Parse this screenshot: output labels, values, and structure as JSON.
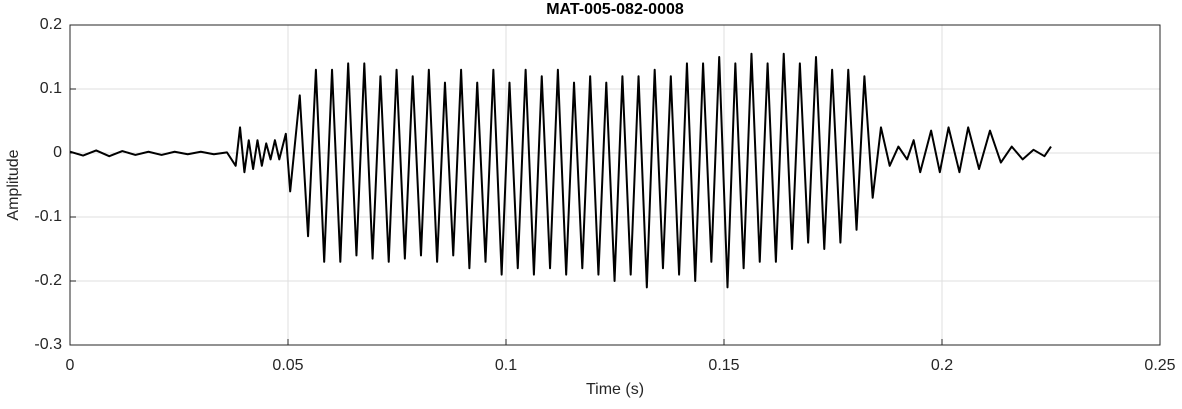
{
  "chart_data": {
    "type": "line",
    "title": "MAT-005-082-0008",
    "x_label": "Time (s)",
    "y_label": "Amplitude",
    "color": "#000000",
    "grid": true,
    "xlim": [
      0,
      0.25
    ],
    "xticks": [
      0,
      0.05,
      0.1,
      0.15,
      0.2,
      0.25
    ],
    "ylim": [
      -0.3,
      0.2
    ],
    "yticks": [
      -0.3,
      -0.2,
      -0.1,
      0,
      0.1,
      0.2
    ],
    "x": [
      0,
      0.003,
      0.006,
      0.009,
      0.012,
      0.015,
      0.018,
      0.021,
      0.024,
      0.027,
      0.03,
      0.033,
      0.036,
      0.038,
      0.039,
      0.04,
      0.041,
      0.042,
      0.043,
      0.044,
      0.045,
      0.046,
      0.047,
      0.048,
      0.0495,
      0.0505,
      0.0527,
      0.0546,
      0.0564,
      0.0583,
      0.0601,
      0.062,
      0.0638,
      0.0657,
      0.0675,
      0.0694,
      0.0712,
      0.0731,
      0.0749,
      0.0768,
      0.0786,
      0.0805,
      0.0823,
      0.0842,
      0.086,
      0.0879,
      0.0897,
      0.0916,
      0.0934,
      0.0953,
      0.0971,
      0.099,
      0.1008,
      0.1027,
      0.1045,
      0.1064,
      0.1082,
      0.1101,
      0.1119,
      0.1138,
      0.1156,
      0.1175,
      0.1193,
      0.1212,
      0.123,
      0.1249,
      0.1267,
      0.1286,
      0.1304,
      0.1323,
      0.1341,
      0.136,
      0.1378,
      0.1397,
      0.1415,
      0.1434,
      0.1452,
      0.1471,
      0.1489,
      0.1508,
      0.1526,
      0.1545,
      0.1563,
      0.1582,
      0.16,
      0.1619,
      0.1637,
      0.1656,
      0.1674,
      0.1693,
      0.1711,
      0.173,
      0.1748,
      0.1767,
      0.1785,
      0.1804,
      0.1822,
      0.1841,
      0.186,
      0.188,
      0.19,
      0.192,
      0.1935,
      0.195,
      0.1975,
      0.1995,
      0.2015,
      0.204,
      0.206,
      0.2085,
      0.211,
      0.2135,
      0.216,
      0.2185,
      0.221,
      0.2235,
      0.225
    ],
    "values": [
      0.002,
      -0.004,
      0.004,
      -0.005,
      0.003,
      -0.003,
      0.002,
      -0.003,
      0.002,
      -0.002,
      0.002,
      -0.002,
      0.001,
      -0.02,
      0.04,
      -0.03,
      0.02,
      -0.025,
      0.02,
      -0.02,
      0.015,
      -0.01,
      0.02,
      -0.01,
      0.03,
      -0.06,
      0.09,
      -0.13,
      0.13,
      -0.17,
      0.13,
      -0.17,
      0.14,
      -0.16,
      0.14,
      -0.165,
      0.12,
      -0.17,
      0.13,
      -0.165,
      0.12,
      -0.16,
      0.13,
      -0.17,
      0.11,
      -0.16,
      0.13,
      -0.18,
      0.11,
      -0.17,
      0.13,
      -0.19,
      0.11,
      -0.18,
      0.13,
      -0.19,
      0.12,
      -0.18,
      0.13,
      -0.19,
      0.11,
      -0.18,
      0.12,
      -0.19,
      0.11,
      -0.2,
      0.12,
      -0.19,
      0.12,
      -0.21,
      0.13,
      -0.18,
      0.12,
      -0.19,
      0.14,
      -0.2,
      0.14,
      -0.17,
      0.15,
      -0.21,
      0.14,
      -0.18,
      0.155,
      -0.17,
      0.14,
      -0.17,
      0.155,
      -0.15,
      0.14,
      -0.14,
      0.15,
      -0.15,
      0.13,
      -0.14,
      0.13,
      -0.12,
      0.12,
      -0.07,
      0.04,
      -0.02,
      0.01,
      -0.01,
      0.02,
      -0.03,
      0.035,
      -0.03,
      0.04,
      -0.03,
      0.04,
      -0.025,
      0.035,
      -0.015,
      0.01,
      -0.01,
      0.005,
      -0.005,
      0.01
    ]
  }
}
